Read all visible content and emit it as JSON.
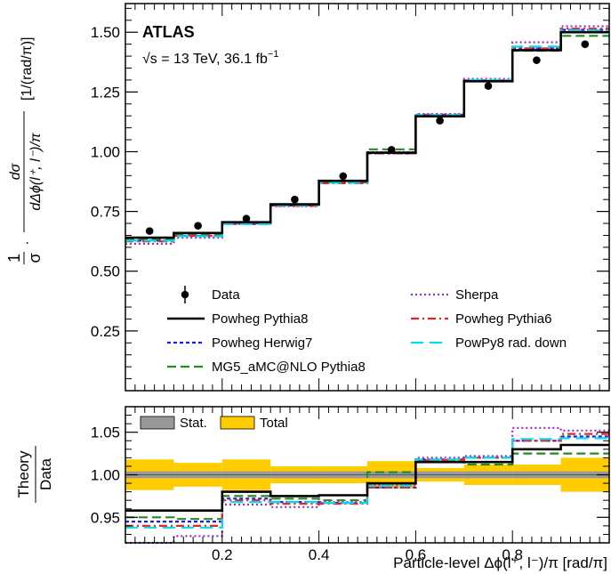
{
  "chart_data": [
    {
      "type": "line",
      "experiment": "ATLAS",
      "energy_prefix": "√s = 13 TeV, 36.1 fb",
      "energy_sup": "−1",
      "ylabel_prefix": "1",
      "ylabel_sigma": "σ",
      "ylabel_num": "dσ",
      "ylabel_den": "dΔϕ(l⁺, l⁻)/π",
      "ylabel_units": "[1/(rad/π)]",
      "xlim": [
        0,
        1
      ],
      "ylim": [
        0,
        1.62
      ],
      "yticks": [
        "0.25",
        "0.50",
        "0.75",
        "1.00",
        "1.25",
        "1.50"
      ],
      "yticks_values": [
        0.25,
        0.5,
        0.75,
        1.0,
        1.25,
        1.5
      ],
      "bin_edges": [
        0,
        0.1,
        0.2,
        0.3,
        0.4,
        0.5,
        0.6,
        0.7,
        0.8,
        0.9,
        1.0
      ],
      "data": {
        "name": "Data",
        "x": [
          0.05,
          0.15,
          0.25,
          0.35,
          0.45,
          0.55,
          0.65,
          0.75,
          0.85,
          0.95
        ],
        "y": [
          0.668,
          0.69,
          0.72,
          0.8,
          0.898,
          1.008,
          1.13,
          1.275,
          1.383,
          1.45
        ],
        "color": "#000000"
      },
      "series": [
        {
          "name": "Powheg Pythia8",
          "color": "#000000",
          "style": "solid",
          "values": [
            0.64,
            0.66,
            0.705,
            0.78,
            0.878,
            0.996,
            1.148,
            1.295,
            1.425,
            1.5
          ]
        },
        {
          "name": "Powheg Herwig7",
          "color": "#1a1aff",
          "style": "dotted-dash",
          "values": [
            0.628,
            0.648,
            0.698,
            0.775,
            0.87,
            0.993,
            1.155,
            1.298,
            1.432,
            1.51
          ]
        },
        {
          "name": "MG5_aMC@NLO Pythia8",
          "color": "#228b22",
          "style": "dashed",
          "values": [
            0.633,
            0.652,
            0.702,
            0.778,
            0.872,
            1.01,
            1.15,
            1.295,
            1.423,
            1.485
          ]
        },
        {
          "name": "Sherpa",
          "color": "#9932cc",
          "style": "dotted",
          "values": [
            0.615,
            0.64,
            0.7,
            0.772,
            0.873,
            0.998,
            1.158,
            1.305,
            1.458,
            1.525
          ]
        },
        {
          "name": "Powheg Pythia6",
          "color": "#ee2222",
          "style": "dash-dot",
          "values": [
            0.625,
            0.648,
            0.698,
            0.773,
            0.868,
            0.993,
            1.152,
            1.298,
            1.432,
            1.515
          ]
        },
        {
          "name": "PowPy8 rad. down",
          "color": "#00ddee",
          "style": "long-dash",
          "values": [
            0.628,
            0.646,
            0.697,
            0.776,
            0.87,
            0.995,
            1.153,
            1.3,
            1.44,
            1.508
          ]
        }
      ]
    },
    {
      "type": "line",
      "ylabel_num": "Theory",
      "ylabel_den": "Data",
      "xlabel": "Particle-level Δϕ(l⁺, l⁻)/π [rad/π]",
      "xlim": [
        0,
        1
      ],
      "ylim": [
        0.92,
        1.08
      ],
      "xticks": [
        "0.2",
        "0.4",
        "0.6",
        "0.8"
      ],
      "xticks_values": [
        0.2,
        0.4,
        0.6,
        0.8
      ],
      "yticks": [
        "0.95",
        "1.00",
        "1.05"
      ],
      "yticks_values": [
        0.95,
        1.0,
        1.05
      ],
      "bands": [
        {
          "name": "Stat.",
          "color": "#999999",
          "halfwidth": [
            0.004,
            0.004,
            0.004,
            0.004,
            0.004,
            0.004,
            0.004,
            0.004,
            0.004,
            0.004
          ]
        },
        {
          "name": "Total",
          "color": "#ffcc00",
          "halfwidth": [
            0.018,
            0.014,
            0.018,
            0.01,
            0.01,
            0.016,
            0.008,
            0.012,
            0.012,
            0.02
          ]
        }
      ],
      "series": [
        {
          "name": "Powheg Pythia8",
          "color": "#000000",
          "style": "solid",
          "values": [
            0.958,
            0.958,
            0.98,
            0.975,
            0.976,
            0.99,
            1.015,
            1.015,
            1.03,
            1.035
          ]
        },
        {
          "name": "Powheg Herwig7",
          "color": "#1a1aff",
          "style": "dotted-dash",
          "values": [
            0.945,
            0.945,
            0.972,
            0.968,
            0.967,
            0.985,
            1.018,
            1.02,
            1.04,
            1.045
          ]
        },
        {
          "name": "MG5_aMC@NLO Pythia8",
          "color": "#228b22",
          "style": "dashed",
          "values": [
            0.95,
            0.948,
            0.975,
            0.972,
            0.97,
            1.003,
            1.016,
            1.012,
            1.025,
            1.025
          ]
        },
        {
          "name": "Sherpa",
          "color": "#9932cc",
          "style": "dotted",
          "values": [
            0.92,
            0.928,
            0.965,
            0.962,
            0.968,
            0.988,
            1.02,
            1.022,
            1.055,
            1.052
          ]
        },
        {
          "name": "Powheg Pythia6",
          "color": "#ee2222",
          "style": "dash-dot",
          "values": [
            0.94,
            0.94,
            0.97,
            0.966,
            0.966,
            0.985,
            1.017,
            1.02,
            1.04,
            1.048
          ]
        },
        {
          "name": "PowPy8 rad. down",
          "color": "#00ddee",
          "style": "long-dash",
          "values": [
            0.938,
            0.938,
            0.968,
            0.968,
            0.967,
            0.987,
            1.018,
            1.02,
            1.042,
            1.043
          ]
        }
      ]
    }
  ]
}
